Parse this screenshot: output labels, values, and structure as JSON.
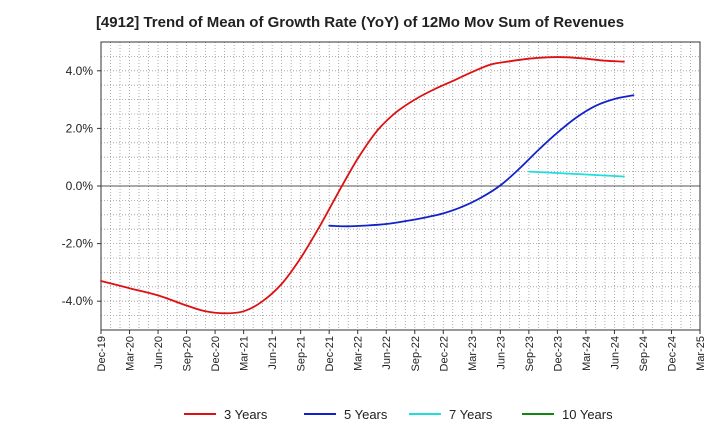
{
  "chart_data": {
    "type": "line",
    "title": "[4912]  Trend of Mean of Growth Rate (YoY) of 12Mo Mov Sum of Revenues",
    "xlabel": "",
    "ylabel": "",
    "ylim": [
      -5.0,
      5.0
    ],
    "y_ticks": [
      {
        "value": 4.0,
        "label": "4.0%"
      },
      {
        "value": 2.0,
        "label": "2.0%"
      },
      {
        "value": 0.0,
        "label": "0.0%"
      },
      {
        "value": -2.0,
        "label": "-2.0%"
      },
      {
        "value": -4.0,
        "label": "-4.0%"
      }
    ],
    "x_range": [
      0,
      63
    ],
    "x_ticks": [
      {
        "index": 0,
        "label": "Dec-19"
      },
      {
        "index": 3,
        "label": "Mar-20"
      },
      {
        "index": 6,
        "label": "Jun-20"
      },
      {
        "index": 9,
        "label": "Sep-20"
      },
      {
        "index": 12,
        "label": "Dec-20"
      },
      {
        "index": 15,
        "label": "Mar-21"
      },
      {
        "index": 18,
        "label": "Jun-21"
      },
      {
        "index": 21,
        "label": "Sep-21"
      },
      {
        "index": 24,
        "label": "Dec-21"
      },
      {
        "index": 27,
        "label": "Mar-22"
      },
      {
        "index": 30,
        "label": "Jun-22"
      },
      {
        "index": 33,
        "label": "Sep-22"
      },
      {
        "index": 36,
        "label": "Dec-22"
      },
      {
        "index": 39,
        "label": "Mar-23"
      },
      {
        "index": 42,
        "label": "Jun-23"
      },
      {
        "index": 45,
        "label": "Sep-23"
      },
      {
        "index": 48,
        "label": "Dec-23"
      },
      {
        "index": 51,
        "label": "Mar-24"
      },
      {
        "index": 54,
        "label": "Jun-24"
      },
      {
        "index": 57,
        "label": "Sep-24"
      },
      {
        "index": 60,
        "label": "Dec-24"
      },
      {
        "index": 63,
        "label": "Mar-25"
      }
    ],
    "grid": true,
    "legend_position": "bottom",
    "series": [
      {
        "name": "3 Years",
        "color": "#dd1111",
        "points": [
          [
            0,
            -3.3
          ],
          [
            3,
            -3.55
          ],
          [
            6,
            -3.8
          ],
          [
            9,
            -4.15
          ],
          [
            11,
            -4.35
          ],
          [
            13,
            -4.42
          ],
          [
            15,
            -4.35
          ],
          [
            17,
            -4.0
          ],
          [
            19,
            -3.4
          ],
          [
            21,
            -2.5
          ],
          [
            23,
            -1.4
          ],
          [
            25,
            -0.2
          ],
          [
            27,
            0.95
          ],
          [
            29,
            1.9
          ],
          [
            31,
            2.55
          ],
          [
            33,
            3.0
          ],
          [
            35,
            3.35
          ],
          [
            37,
            3.65
          ],
          [
            39,
            3.95
          ],
          [
            41,
            4.22
          ],
          [
            43,
            4.33
          ],
          [
            45,
            4.42
          ],
          [
            47,
            4.47
          ],
          [
            49,
            4.47
          ],
          [
            51,
            4.42
          ],
          [
            53,
            4.35
          ],
          [
            55,
            4.32
          ]
        ]
      },
      {
        "name": "5 Years",
        "color": "#1122cc",
        "points": [
          [
            24,
            -1.38
          ],
          [
            26,
            -1.4
          ],
          [
            28,
            -1.37
          ],
          [
            30,
            -1.32
          ],
          [
            32,
            -1.22
          ],
          [
            34,
            -1.1
          ],
          [
            36,
            -0.95
          ],
          [
            38,
            -0.72
          ],
          [
            40,
            -0.4
          ],
          [
            42,
            0.02
          ],
          [
            44,
            0.6
          ],
          [
            46,
            1.25
          ],
          [
            48,
            1.85
          ],
          [
            50,
            2.38
          ],
          [
            52,
            2.78
          ],
          [
            54,
            3.02
          ],
          [
            56,
            3.15
          ]
        ]
      },
      {
        "name": "7 Years",
        "color": "#22dddd",
        "points": [
          [
            45,
            0.5
          ],
          [
            48,
            0.45
          ],
          [
            51,
            0.4
          ],
          [
            55,
            0.33
          ]
        ]
      },
      {
        "name": "10 Years",
        "color": "#118811",
        "points": []
      }
    ]
  }
}
